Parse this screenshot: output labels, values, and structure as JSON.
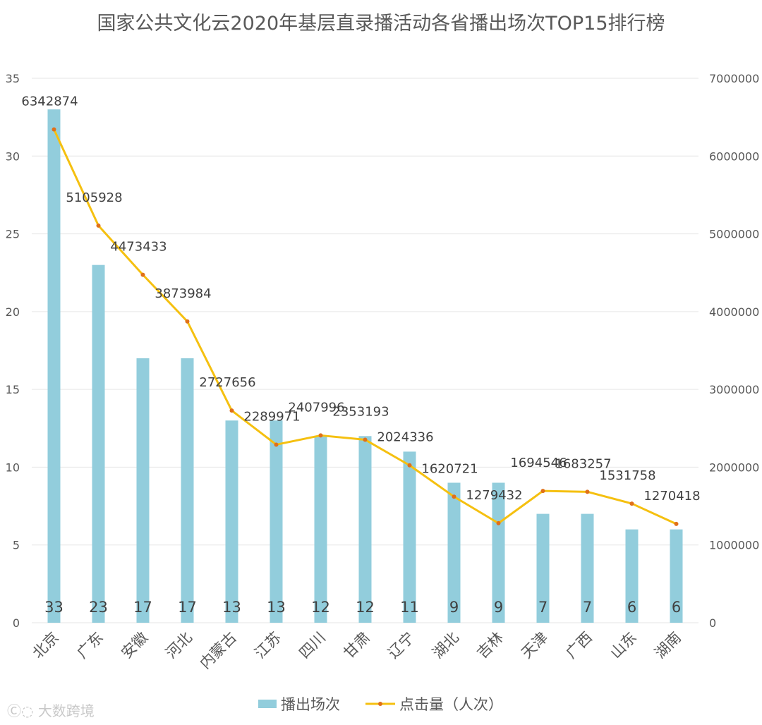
{
  "chart_data": {
    "type": "bar+line",
    "title": "国家公共文化云2020年基层直录播活动各省播出场次TOP15排行榜",
    "categories": [
      "北京",
      "广东",
      "安徽",
      "河北",
      "内蒙古",
      "江苏",
      "四川",
      "甘肃",
      "辽宁",
      "湖北",
      "吉林",
      "天津",
      "广西",
      "山东",
      "湖南"
    ],
    "series": [
      {
        "name": "播出场次",
        "type": "bar",
        "axis": "left",
        "color": "#92cddc",
        "values": [
          33,
          23,
          17,
          17,
          13,
          13,
          12,
          12,
          11,
          9,
          9,
          7,
          7,
          6,
          6
        ]
      },
      {
        "name": "点击量（人次）",
        "type": "line",
        "axis": "right",
        "color": "#f5c010",
        "marker_color": "#e0701a",
        "values": [
          6342874,
          5105928,
          4473433,
          3873984,
          2727656,
          2289971,
          2407996,
          2353193,
          2024336,
          1620721,
          1279432,
          1694546,
          1683257,
          1531758,
          1270418
        ]
      }
    ],
    "left_axis": {
      "ylim": [
        0,
        35
      ],
      "ticks": [
        0,
        5,
        10,
        15,
        20,
        25,
        30,
        35
      ]
    },
    "right_axis": {
      "ylim": [
        0,
        7000000
      ],
      "ticks": [
        0,
        1000000,
        2000000,
        3000000,
        4000000,
        5000000,
        6000000,
        7000000
      ]
    },
    "grid": true,
    "legend": "bottom",
    "watermark": "大数跨境"
  }
}
